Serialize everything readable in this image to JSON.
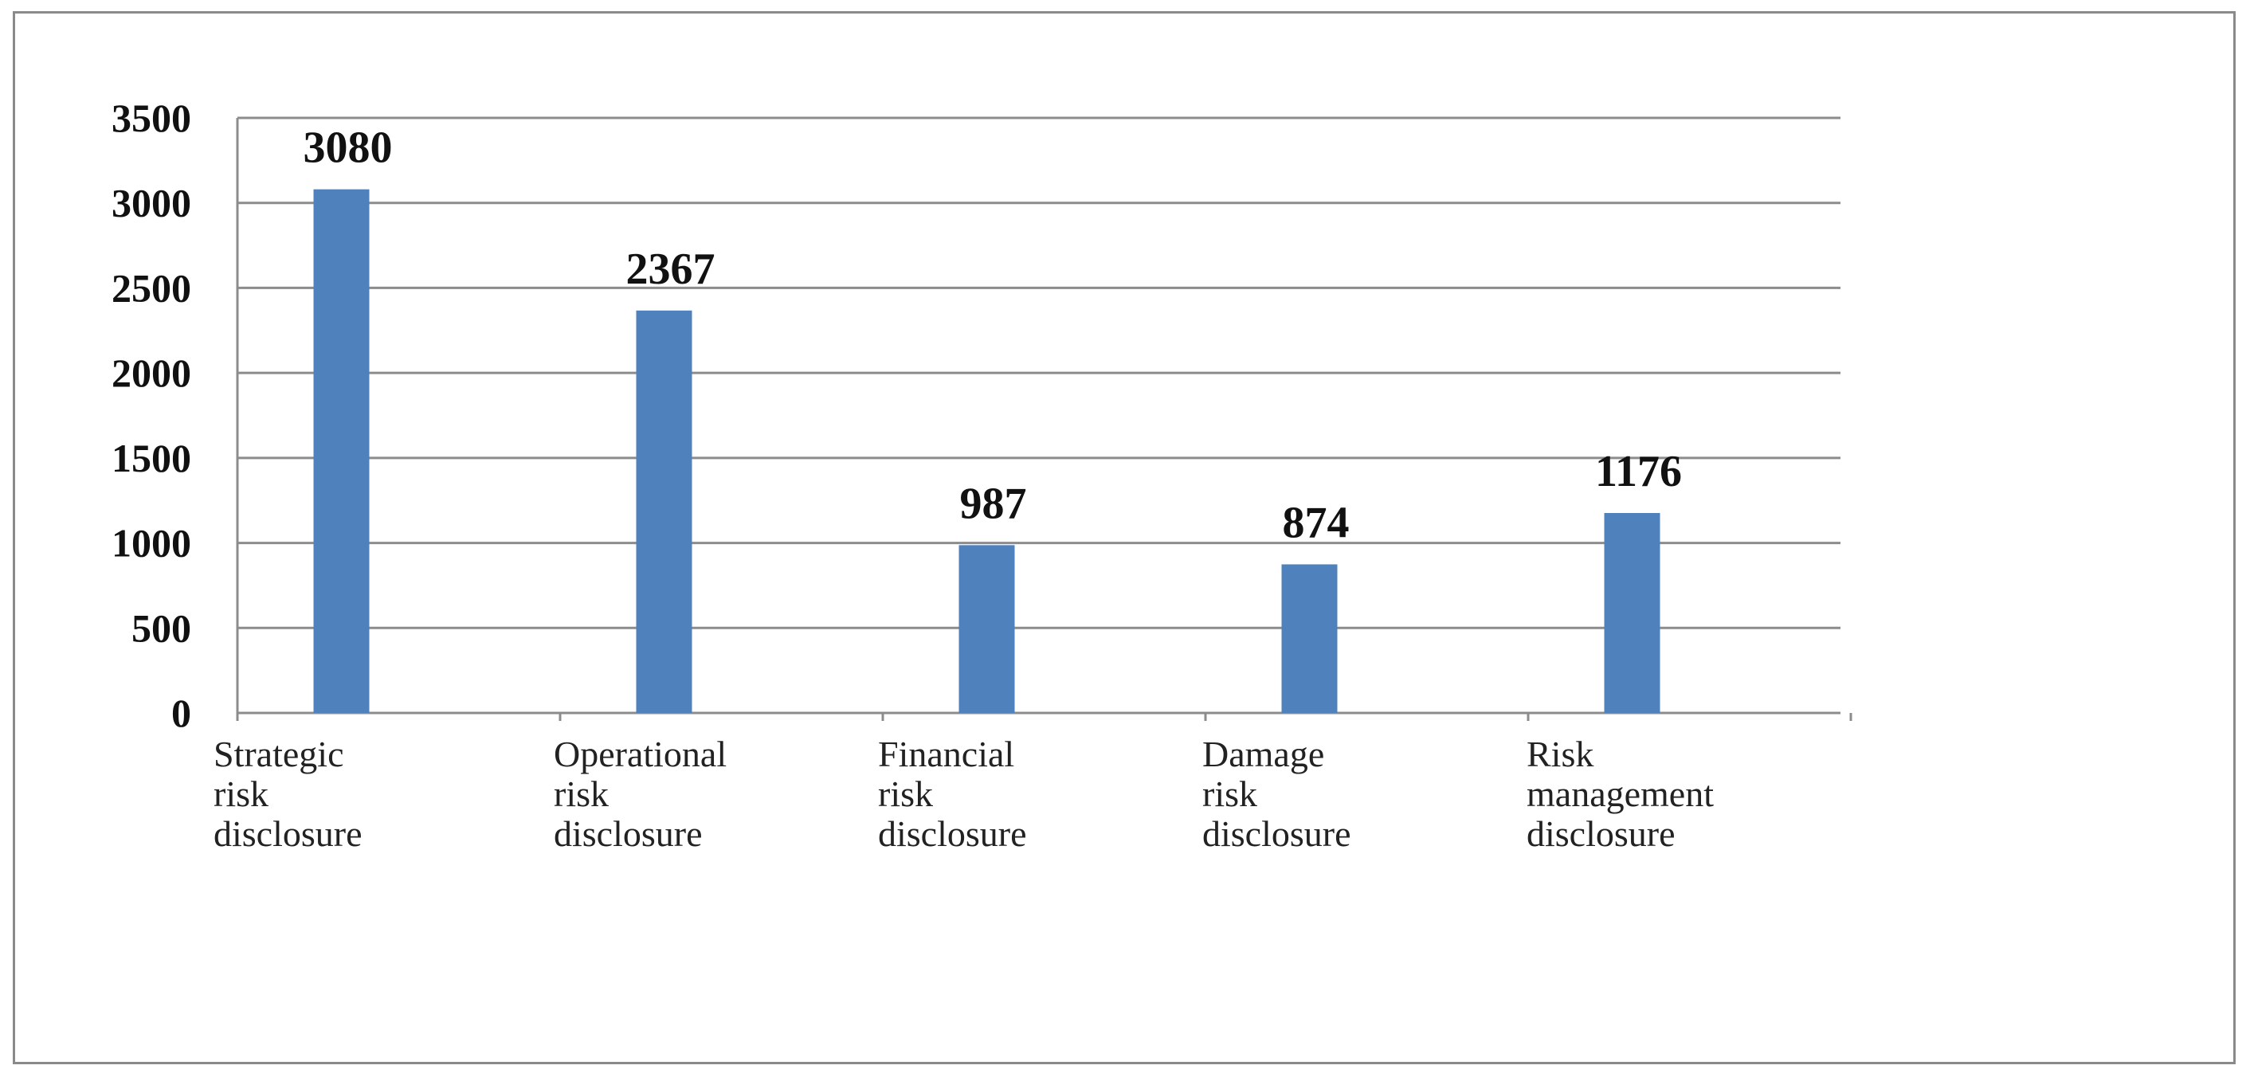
{
  "chart_data": {
    "type": "bar",
    "categories": [
      [
        "Strategic",
        "risk",
        "disclosure"
      ],
      [
        "Operational",
        "risk",
        "disclosure"
      ],
      [
        "Financial",
        "risk",
        "disclosure"
      ],
      [
        "Damage",
        "risk",
        "disclosure"
      ],
      [
        "Risk",
        "management",
        "disclosure"
      ]
    ],
    "values": [
      3080,
      2367,
      987,
      874,
      1176
    ],
    "data_labels": [
      "3080",
      "2367",
      "987",
      "874",
      "1176"
    ],
    "yticks": [
      0,
      500,
      1000,
      1500,
      2000,
      2500,
      3000,
      3500
    ],
    "ylim": [
      0,
      3500
    ],
    "grid": true,
    "legend": "none",
    "bar_color": "#4f81bd",
    "grid_color": "#8c8c8c",
    "title": "",
    "xlabel": "",
    "ylabel": ""
  }
}
